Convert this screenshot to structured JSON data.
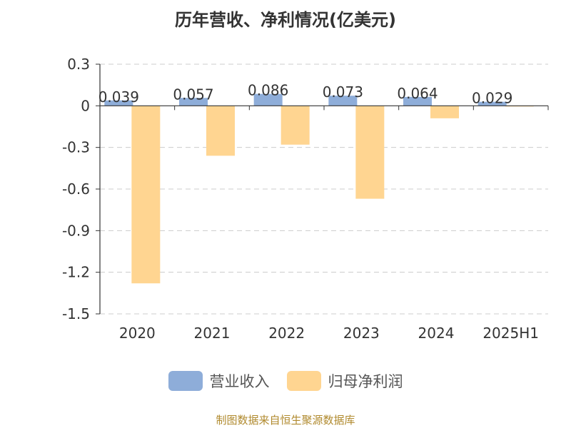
{
  "title": "历年营收、净利情况(亿美元)",
  "source": "制图数据来自恒生聚源数据库",
  "colors": {
    "revenue": "#8eadd9",
    "profit": "#ffd591",
    "axis": "#333333",
    "grid": "#cccccc",
    "label": "#333333"
  },
  "legend": [
    {
      "name": "营业收入",
      "color": "#8eadd9"
    },
    {
      "name": "归母净利润",
      "color": "#ffd591"
    }
  ],
  "chart_data": {
    "type": "bar",
    "title": "历年营收、净利情况(亿美元)",
    "categories": [
      "2020",
      "2021",
      "2022",
      "2023",
      "2024",
      "2025H1"
    ],
    "series": [
      {
        "name": "营业收入",
        "values": [
          0.039,
          0.057,
          0.086,
          0.073,
          0.064,
          0.029
        ]
      },
      {
        "name": "归母净利润",
        "values": [
          -1.28,
          -0.36,
          -0.28,
          -0.67,
          -0.09,
          -0.003
        ]
      }
    ],
    "data_labels": [
      "0.039",
      "0.057",
      "0.086",
      "0.073",
      "0.064",
      "0.029"
    ],
    "yticks": [
      "0.3",
      "0",
      "-0.3",
      "-0.6",
      "-0.9",
      "-1.2",
      "-1.5"
    ],
    "ylim": [
      -1.5,
      0.3
    ],
    "grid": true,
    "legend_position": "bottom"
  }
}
